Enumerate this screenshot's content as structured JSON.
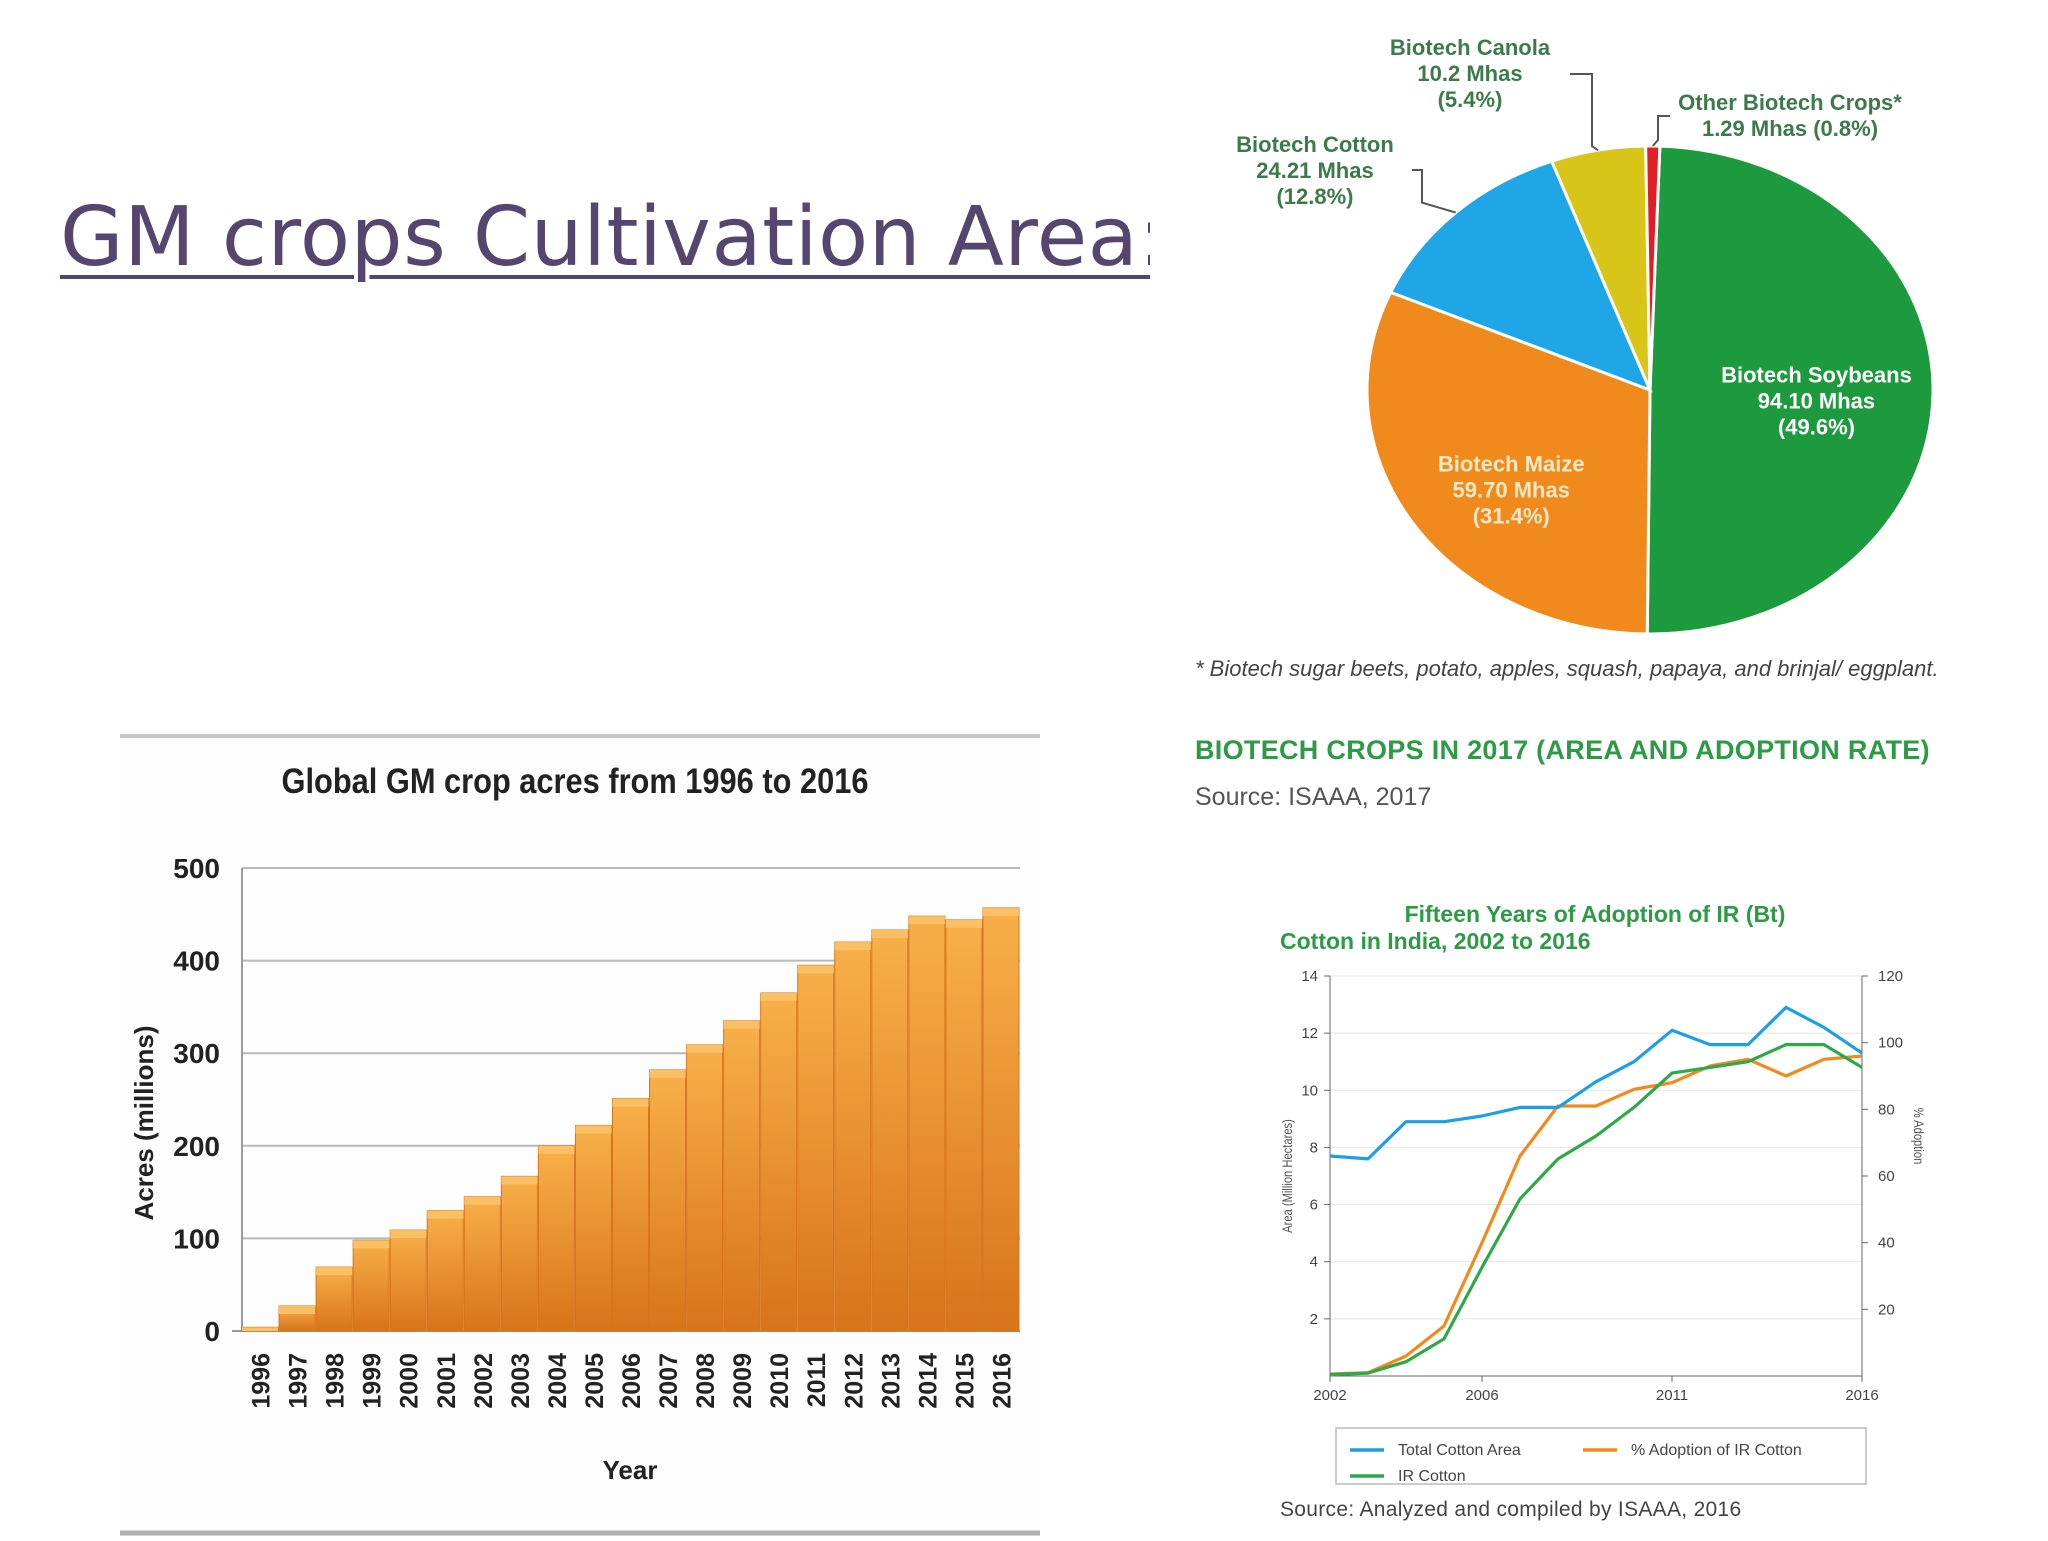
{
  "slide": {
    "title": "GM crops Cultivation Area:"
  },
  "pie": {
    "footnote": "* Biotech sugar beets, potato, apples, squash, papaya, and brinjal/ eggplant.",
    "title": "BIOTECH CROPS IN 2017 (AREA AND ADOPTION RATE)",
    "source": "Source: ISAAA, 2017"
  },
  "line": {
    "source": "Source: Analyzed and compiled by ISAAA, 2016"
  },
  "chart_data": [
    {
      "type": "bar",
      "title": "Global GM crop acres from 1996 to 2016",
      "xlabel": "Year",
      "ylabel": "Acres (millions)",
      "categories": [
        "1996",
        "1997",
        "1998",
        "1999",
        "2000",
        "2001",
        "2002",
        "2003",
        "2004",
        "2005",
        "2006",
        "2007",
        "2008",
        "2009",
        "2010",
        "2011",
        "2012",
        "2013",
        "2014",
        "2015",
        "2016"
      ],
      "values": [
        4,
        27,
        69,
        98,
        109,
        130,
        145,
        167,
        200,
        222,
        251,
        282,
        309,
        335,
        365,
        395,
        420,
        433,
        448,
        444,
        457
      ],
      "ylim": [
        0,
        500
      ],
      "yticks": [
        0,
        100,
        200,
        300,
        400,
        500
      ],
      "grid": true,
      "colors": {
        "bar": "#f0901f",
        "bar_light": "#f8b04a",
        "bar_dark": "#d8731a",
        "grid": "#b9b9b9"
      }
    },
    {
      "type": "pie",
      "slices": [
        {
          "name": "Biotech Soybeans",
          "area": "94.10 Mhas",
          "pct_label": "(49.6%)",
          "value": 49.6,
          "color": "#1e9a3e"
        },
        {
          "name": "Biotech Maize",
          "area": "59.70 Mhas",
          "pct_label": "(31.4%)",
          "value": 31.4,
          "color": "#f08a1c"
        },
        {
          "name": "Biotech Cotton",
          "area": "24.21 Mhas",
          "pct_label": "(12.8%)",
          "value": 12.8,
          "color": "#1ea6e6"
        },
        {
          "name": "Biotech Canola",
          "area": "10.2 Mhas",
          "pct_label": "(5.4%)",
          "value": 5.4,
          "color": "#d9c418"
        },
        {
          "name": "Other Biotech Crops*",
          "area": "1.29 Mhas",
          "pct_label": "(0.8%)",
          "value": 0.8,
          "color": "#e01e26"
        }
      ]
    },
    {
      "type": "line",
      "title": "Fifteen Years of Adoption of IR (Bt) Cotton in India, 2002 to 2016",
      "ylabel": "Area (Million Hectares)",
      "y2label": "% Adoption",
      "x": [
        2002,
        2003,
        2004,
        2005,
        2006,
        2007,
        2008,
        2009,
        2010,
        2011,
        2012,
        2013,
        2014,
        2015,
        2016
      ],
      "xticks": [
        2002,
        2006,
        2011,
        2016
      ],
      "xlim": [
        2002,
        2016
      ],
      "ylim": [
        0,
        14
      ],
      "yticks": [
        2,
        4,
        6,
        8,
        10,
        12,
        14
      ],
      "y2lim": [
        0,
        120
      ],
      "y2ticks": [
        20,
        40,
        60,
        80,
        100,
        120
      ],
      "series": [
        {
          "name": "Total Cotton Area",
          "axis": "left",
          "color": "#1e9ee6",
          "values": [
            7.7,
            7.6,
            8.9,
            8.9,
            9.1,
            9.4,
            9.4,
            10.3,
            11.0,
            12.1,
            11.6,
            11.6,
            12.9,
            12.2,
            11.3
          ]
        },
        {
          "name": "% Adoption of IR Cotton",
          "axis": "right",
          "color": "#f08a1c",
          "values": [
            0.6,
            1.0,
            6.0,
            15.0,
            40.0,
            66.0,
            81.0,
            81.0,
            86.0,
            88.0,
            93.0,
            95.0,
            90.0,
            95.0,
            96.0
          ]
        },
        {
          "name": "IR Cotton",
          "axis": "left",
          "color": "#2fa84a",
          "values": [
            0.05,
            0.1,
            0.5,
            1.3,
            3.8,
            6.2,
            7.6,
            8.4,
            9.4,
            10.6,
            10.8,
            11.0,
            11.6,
            11.6,
            10.8
          ]
        }
      ]
    }
  ]
}
